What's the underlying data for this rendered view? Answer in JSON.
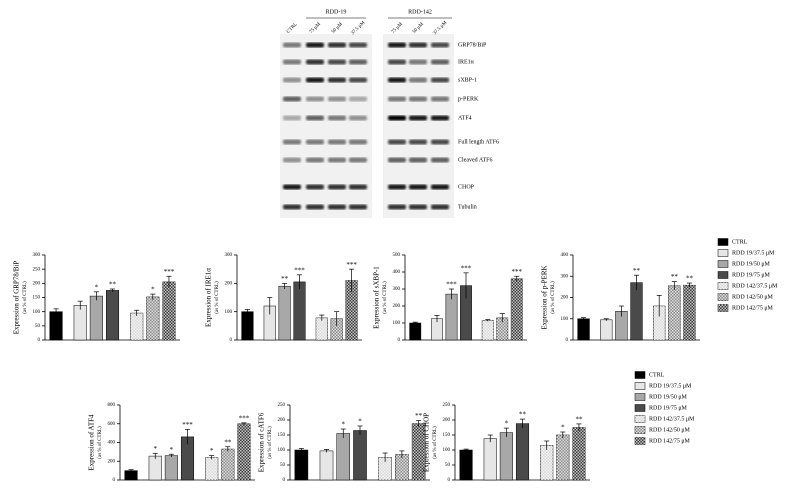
{
  "blot": {
    "groups": [
      "RDD-19",
      "RDD-142"
    ],
    "lanes": [
      "CTRL",
      "75 μM",
      "50 μM",
      "37.5 μM",
      "75 μM",
      "50 μM",
      "37.5 μM"
    ],
    "rows": [
      "GRP78/BiP",
      "IRE1α",
      "sXBP-1",
      "p-PERK",
      "ATF4",
      "Full length ATF6",
      "Cleaved ATF6",
      "CHOP",
      "Tubulin"
    ]
  },
  "legend": {
    "names": [
      "CTRL",
      "RDD 19/37.5 μM",
      "RDD 19/50 μM",
      "RDD 19/75 μM",
      "RDD 142/37.5 μM",
      "RDD 142/50 μM",
      "RDD 142/75 μM"
    ],
    "colors": [
      "#000000",
      "#e6e6e6",
      "#a8a8a8",
      "#4a4a4a",
      "#d9d9d9",
      "#8c8c8c",
      "#3a3a3a"
    ],
    "pattern": [
      false,
      false,
      false,
      false,
      true,
      true,
      true
    ]
  },
  "legend2": {
    "names": [
      "CTRL",
      "RDD 19/37.5 μM",
      "RDD 19/50 μM",
      "RDD 19/75 μM",
      "RDD 142/37.5 μM",
      "RDD 142/50 μM",
      "RDD 142/75 μM"
    ]
  },
  "chart_data": [
    {
      "type": "bar",
      "ylabel": "Expression of GRP78/BiP",
      "yunit": "(as % of CTRL)",
      "ylim": [
        0,
        300
      ],
      "yticks": [
        0,
        50,
        100,
        150,
        200,
        250,
        300
      ],
      "values": [
        100,
        122,
        155,
        175,
        95,
        152,
        205
      ],
      "errors": [
        10,
        15,
        15,
        5,
        10,
        10,
        20
      ],
      "stars": [
        null,
        null,
        "*",
        "**",
        null,
        "*",
        "***"
      ]
    },
    {
      "type": "bar",
      "ylabel": "Expression of IRE1α",
      "yunit": "(as % of CTRL)",
      "ylim": [
        0,
        300
      ],
      "yticks": [
        0,
        100,
        200,
        300
      ],
      "values": [
        100,
        120,
        190,
        205,
        78,
        75,
        210
      ],
      "errors": [
        8,
        30,
        10,
        25,
        10,
        25,
        40
      ],
      "stars": [
        null,
        null,
        "**",
        "***",
        null,
        null,
        "***"
      ]
    },
    {
      "type": "bar",
      "ylabel": "Expression of sXBP-1",
      "yunit": "(as % of CTRL)",
      "ylim": [
        0,
        500
      ],
      "yticks": [
        0,
        100,
        200,
        300,
        400,
        500
      ],
      "values": [
        100,
        125,
        270,
        320,
        115,
        130,
        360
      ],
      "errors": [
        5,
        20,
        30,
        75,
        5,
        25,
        15
      ],
      "stars": [
        null,
        null,
        "***",
        "***",
        null,
        null,
        "***"
      ]
    },
    {
      "type": "bar",
      "ylabel": "Expression of p-PERK",
      "yunit": "(as % of CTRL)",
      "ylim": [
        0,
        400
      ],
      "yticks": [
        0,
        100,
        200,
        300,
        400
      ],
      "values": [
        100,
        95,
        135,
        270,
        160,
        255,
        258
      ],
      "errors": [
        5,
        5,
        25,
        35,
        50,
        20,
        10
      ],
      "stars": [
        null,
        null,
        null,
        "**",
        null,
        "**",
        "**"
      ]
    },
    {
      "type": "bar",
      "ylabel": "Expression of ATF4",
      "yunit": "(as % of CTRL)",
      "ylim": [
        0,
        800
      ],
      "yticks": [
        0,
        200,
        400,
        600,
        800
      ],
      "values": [
        100,
        255,
        260,
        460,
        240,
        330,
        600
      ],
      "errors": [
        10,
        30,
        15,
        80,
        20,
        25,
        10
      ],
      "stars": [
        null,
        "*",
        "*",
        "***",
        "*",
        "**",
        "***"
      ]
    },
    {
      "type": "bar",
      "ylabel": "Expression of cATF6",
      "yunit": "(as % of CTRL)",
      "ylim": [
        0,
        250
      ],
      "yticks": [
        0,
        50,
        100,
        150,
        200,
        250
      ],
      "values": [
        100,
        97,
        155,
        165,
        75,
        85,
        188
      ],
      "errors": [
        5,
        5,
        15,
        15,
        15,
        12,
        10
      ],
      "stars": [
        null,
        null,
        "*",
        "*",
        null,
        null,
        "**"
      ]
    },
    {
      "type": "bar",
      "ylabel": "Expression of CHOP",
      "yunit": "(as % of CTRL)",
      "ylim": [
        0,
        250
      ],
      "yticks": [
        0,
        50,
        100,
        150,
        200,
        250
      ],
      "values": [
        100,
        138,
        158,
        188,
        115,
        150,
        175
      ],
      "errors": [
        3,
        12,
        15,
        15,
        15,
        10,
        12
      ],
      "stars": [
        null,
        null,
        "*",
        "**",
        null,
        "*",
        "**"
      ]
    }
  ]
}
